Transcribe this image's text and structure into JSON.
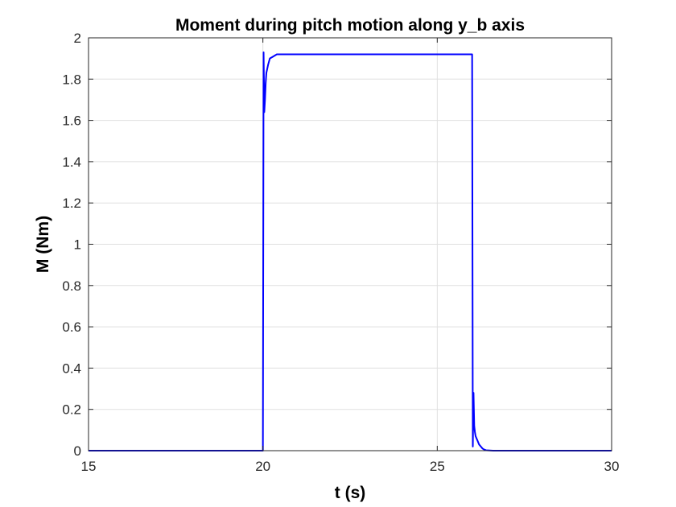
{
  "chart_data": {
    "type": "line",
    "title": "Moment during pitch motion along y_b axis",
    "xlabel": "t (s)",
    "ylabel": "M (Nm)",
    "xlim": [
      15,
      30
    ],
    "ylim": [
      0,
      2
    ],
    "xticks": [
      15,
      20,
      25,
      30
    ],
    "xtick_labels": [
      "15",
      "20",
      "25",
      "30"
    ],
    "yticks": [
      0,
      0.2,
      0.4,
      0.6,
      0.8,
      1,
      1.2,
      1.4,
      1.6,
      1.8,
      2
    ],
    "ytick_labels": [
      "0",
      "0.2",
      "0.4",
      "0.6",
      "0.8",
      "1",
      "1.2",
      "1.4",
      "1.6",
      "1.8",
      "2"
    ],
    "grid": true,
    "series": [
      {
        "color": "#0000ff",
        "x": [
          15,
          20.0,
          20.02,
          20.04,
          20.06,
          20.08,
          20.1,
          20.15,
          20.2,
          20.3,
          20.4,
          20.5,
          20.7,
          21.0,
          22,
          23,
          24,
          25,
          26.0,
          26.02,
          26.04,
          26.06,
          26.08,
          26.1,
          26.15,
          26.2,
          26.25,
          26.3,
          26.35,
          26.4,
          26.5,
          26.6,
          26.8,
          27,
          28,
          29,
          30
        ],
        "y": [
          0,
          0,
          1.93,
          1.64,
          1.7,
          1.78,
          1.83,
          1.87,
          1.9,
          1.91,
          1.92,
          1.92,
          1.92,
          1.92,
          1.92,
          1.92,
          1.92,
          1.92,
          1.92,
          0.02,
          0.28,
          0.12,
          0.09,
          0.07,
          0.05,
          0.03,
          0.02,
          0.01,
          0.005,
          0.002,
          0.001,
          0,
          0,
          0,
          0,
          0,
          0
        ]
      }
    ]
  }
}
